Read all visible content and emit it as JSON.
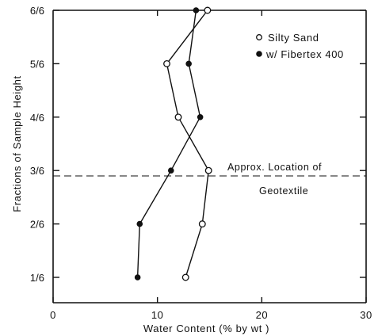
{
  "chart_data": {
    "type": "line",
    "title": "",
    "xlabel": "Water Content (% by wt )",
    "ylabel": "Fractions of Sample Height",
    "xlim": [
      0,
      30
    ],
    "x_ticks": [
      0,
      10,
      20,
      30
    ],
    "x_tick_labels": [
      "0",
      "10",
      "20",
      "30"
    ],
    "y_categories": [
      "1/6",
      "2/6",
      "3/6",
      "4/6",
      "5/6",
      "6/6"
    ],
    "y_values": [
      1,
      2,
      3,
      4,
      5,
      6
    ],
    "ylim": [
      0.5,
      6
    ],
    "grid": false,
    "legend_position": "top-right",
    "series": [
      {
        "name": "Silty Sand",
        "marker": "open-circle",
        "points": [
          {
            "x": 12.7,
            "y": 1
          },
          {
            "x": 14.3,
            "y": 2
          },
          {
            "x": 14.9,
            "y": 3
          },
          {
            "x": 12.0,
            "y": 4
          },
          {
            "x": 10.9,
            "y": 5
          },
          {
            "x": 14.8,
            "y": 6
          }
        ]
      },
      {
        "name": "w/ Fibertex 400",
        "marker": "filled-circle",
        "points": [
          {
            "x": 8.1,
            "y": 1
          },
          {
            "x": 8.3,
            "y": 2
          },
          {
            "x": 11.3,
            "y": 3
          },
          {
            "x": 14.1,
            "y": 4
          },
          {
            "x": 13.0,
            "y": 5
          },
          {
            "x": 13.7,
            "y": 6
          }
        ]
      }
    ],
    "annotation": {
      "line1": "Approx. Location of",
      "line2": "Geotextile",
      "reference_y": 2.9
    }
  }
}
